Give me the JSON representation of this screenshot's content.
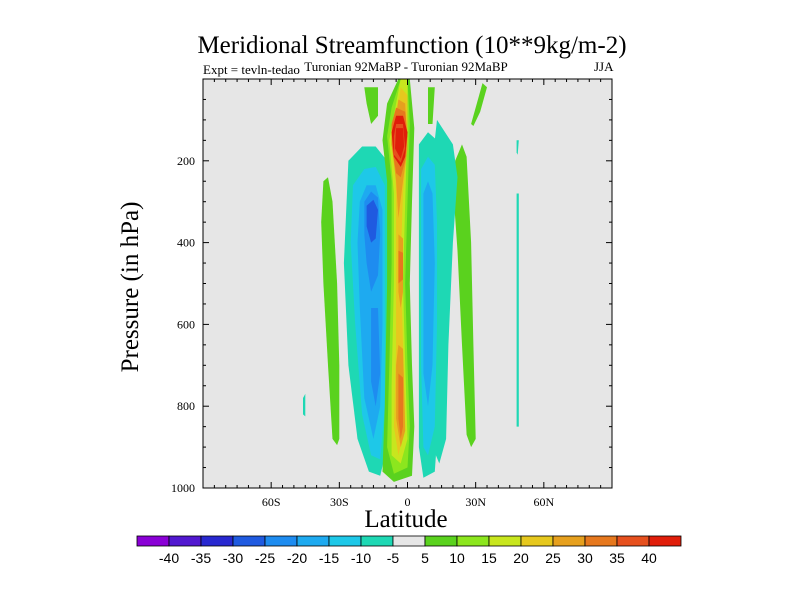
{
  "chart_data": {
    "type": "contour",
    "title": "Meridional Streamfunction (10**9kg/m-2)",
    "experiment_label": "Expt = tevln-tedao",
    "center_label": "Turonian  92MaBP - Turonian  92MaBP",
    "season_label": "JJA",
    "xlabel": "Latitude",
    "ylabel": "Pressure (in hPa)",
    "xlim": [
      -90,
      90
    ],
    "ylim": [
      1000,
      0
    ],
    "x_ticks": [
      {
        "value": -60,
        "label": "60S"
      },
      {
        "value": -30,
        "label": "30S"
      },
      {
        "value": 0,
        "label": "0"
      },
      {
        "value": 30,
        "label": "30N"
      },
      {
        "value": 60,
        "label": "60N"
      }
    ],
    "y_ticks": [
      {
        "value": 200,
        "label": "200"
      },
      {
        "value": 400,
        "label": "400"
      },
      {
        "value": 600,
        "label": "600"
      },
      {
        "value": 800,
        "label": "800"
      },
      {
        "value": 1000,
        "label": "1000"
      }
    ],
    "background_color": "#e6e6e6",
    "colorbar": {
      "labels": [
        "-40",
        "-35",
        "-30",
        "-25",
        "-20",
        "-15",
        "-10",
        "-5",
        "5",
        "10",
        "15",
        "20",
        "25",
        "30",
        "35",
        "40"
      ],
      "colors": [
        "#8a00d6",
        "#5218d0",
        "#2828d0",
        "#1f5ae0",
        "#1e8cf0",
        "#1eaaf0",
        "#1ec8e8",
        "#1ed8b4",
        "#e6e6e6",
        "#5ad21e",
        "#8ce61e",
        "#c8e61e",
        "#e6c81e",
        "#e6a01e",
        "#e6781e",
        "#e6501e",
        "#e01e0a"
      ]
    },
    "contour_regions": [
      {
        "name": "equatorial-positive-cell",
        "lat_range": [
          -12,
          3
        ],
        "pressure_range": [
          0,
          985
        ],
        "max_value": 40,
        "min_value": 5
      },
      {
        "name": "upper-core-maximum",
        "lat_range": [
          -7,
          2
        ],
        "pressure_range": [
          80,
          210
        ],
        "value": 40
      },
      {
        "name": "southern-negative-cell",
        "lat_range": [
          -30,
          -8
        ],
        "pressure_range": [
          170,
          975
        ],
        "min_value": -30,
        "max_value": -5
      },
      {
        "name": "northern-negative-cell",
        "lat_range": [
          5,
          18
        ],
        "pressure_range": [
          120,
          980
        ],
        "min_value": -20,
        "max_value": -5
      },
      {
        "name": "outer-positive-band-south",
        "lat_range": [
          -38,
          -30
        ],
        "pressure_range": [
          250,
          890
        ],
        "value": 5
      },
      {
        "name": "outer-positive-band-north",
        "lat_range": [
          20,
          30
        ],
        "pressure_range": [
          150,
          900
        ],
        "value": 5
      },
      {
        "name": "upper-positive-north",
        "lat_range": [
          26,
          36
        ],
        "pressure_range": [
          5,
          120
        ],
        "value": 5
      }
    ]
  }
}
